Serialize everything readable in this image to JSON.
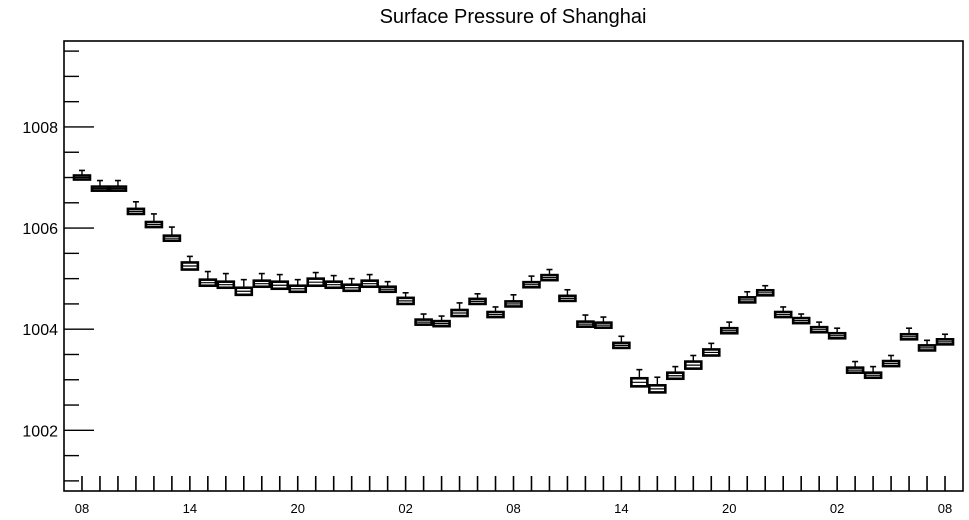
{
  "chart_data": {
    "type": "boxplot",
    "title": "Surface Pressure of Shanghai",
    "xlabel": "",
    "ylabel": "",
    "ylim": [
      1000.8,
      1009.7
    ],
    "grid": false,
    "legend": "none",
    "y_ticks": [
      1002,
      1004,
      1006,
      1008
    ],
    "y_tick_labels": [
      "1002",
      "1004",
      "1006",
      "1008"
    ],
    "x_ticks": [
      0,
      6,
      12,
      18,
      24,
      30,
      36,
      42,
      48
    ],
    "x_tick_labels": [
      "08",
      "14",
      "20",
      "02",
      "08",
      "14",
      "20",
      "02",
      "08"
    ],
    "x_range": [
      -1,
      49
    ],
    "box_color": "#000000",
    "boxes": [
      {
        "x": 0,
        "q1": 1006.96,
        "med": 1007.0,
        "q3": 1007.04,
        "lo": 1006.96,
        "hi": 1007.14
      },
      {
        "x": 1,
        "q1": 1006.74,
        "med": 1006.78,
        "q3": 1006.82,
        "lo": 1006.74,
        "hi": 1006.94
      },
      {
        "x": 2,
        "q1": 1006.74,
        "med": 1006.78,
        "q3": 1006.82,
        "lo": 1006.74,
        "hi": 1006.94
      },
      {
        "x": 3,
        "q1": 1006.28,
        "med": 1006.33,
        "q3": 1006.38,
        "lo": 1006.28,
        "hi": 1006.52
      },
      {
        "x": 4,
        "q1": 1006.02,
        "med": 1006.07,
        "q3": 1006.12,
        "lo": 1006.02,
        "hi": 1006.28
      },
      {
        "x": 5,
        "q1": 1005.75,
        "med": 1005.8,
        "q3": 1005.85,
        "lo": 1005.75,
        "hi": 1006.02
      },
      {
        "x": 6,
        "q1": 1005.18,
        "med": 1005.25,
        "q3": 1005.32,
        "lo": 1005.18,
        "hi": 1005.44
      },
      {
        "x": 7,
        "q1": 1004.86,
        "med": 1004.92,
        "q3": 1004.98,
        "lo": 1004.86,
        "hi": 1005.14
      },
      {
        "x": 8,
        "q1": 1004.82,
        "med": 1004.88,
        "q3": 1004.94,
        "lo": 1004.82,
        "hi": 1005.1
      },
      {
        "x": 9,
        "q1": 1004.68,
        "med": 1004.75,
        "q3": 1004.82,
        "lo": 1004.68,
        "hi": 1004.98
      },
      {
        "x": 10,
        "q1": 1004.84,
        "med": 1004.9,
        "q3": 1004.96,
        "lo": 1004.84,
        "hi": 1005.1
      },
      {
        "x": 11,
        "q1": 1004.8,
        "med": 1004.87,
        "q3": 1004.94,
        "lo": 1004.8,
        "hi": 1005.08
      },
      {
        "x": 12,
        "q1": 1004.74,
        "med": 1004.8,
        "q3": 1004.86,
        "lo": 1004.74,
        "hi": 1004.98
      },
      {
        "x": 13,
        "q1": 1004.86,
        "med": 1004.93,
        "q3": 1005.0,
        "lo": 1004.86,
        "hi": 1005.12
      },
      {
        "x": 14,
        "q1": 1004.82,
        "med": 1004.88,
        "q3": 1004.94,
        "lo": 1004.82,
        "hi": 1005.06
      },
      {
        "x": 15,
        "q1": 1004.76,
        "med": 1004.82,
        "q3": 1004.88,
        "lo": 1004.76,
        "hi": 1005.0
      },
      {
        "x": 16,
        "q1": 1004.84,
        "med": 1004.9,
        "q3": 1004.96,
        "lo": 1004.84,
        "hi": 1005.08
      },
      {
        "x": 17,
        "q1": 1004.74,
        "med": 1004.79,
        "q3": 1004.84,
        "lo": 1004.74,
        "hi": 1004.94
      },
      {
        "x": 18,
        "q1": 1004.5,
        "med": 1004.56,
        "q3": 1004.62,
        "lo": 1004.5,
        "hi": 1004.72
      },
      {
        "x": 19,
        "q1": 1004.09,
        "med": 1004.14,
        "q3": 1004.19,
        "lo": 1004.09,
        "hi": 1004.3
      },
      {
        "x": 20,
        "q1": 1004.06,
        "med": 1004.11,
        "q3": 1004.16,
        "lo": 1004.06,
        "hi": 1004.26
      },
      {
        "x": 21,
        "q1": 1004.26,
        "med": 1004.32,
        "q3": 1004.38,
        "lo": 1004.26,
        "hi": 1004.52
      },
      {
        "x": 22,
        "q1": 1004.5,
        "med": 1004.55,
        "q3": 1004.6,
        "lo": 1004.5,
        "hi": 1004.7
      },
      {
        "x": 23,
        "q1": 1004.24,
        "med": 1004.29,
        "q3": 1004.34,
        "lo": 1004.24,
        "hi": 1004.44
      },
      {
        "x": 24,
        "q1": 1004.45,
        "med": 1004.5,
        "q3": 1004.55,
        "lo": 1004.45,
        "hi": 1004.68
      },
      {
        "x": 25,
        "q1": 1004.83,
        "med": 1004.88,
        "q3": 1004.93,
        "lo": 1004.83,
        "hi": 1005.05
      },
      {
        "x": 26,
        "q1": 1004.97,
        "med": 1005.02,
        "q3": 1005.07,
        "lo": 1004.97,
        "hi": 1005.18
      },
      {
        "x": 27,
        "q1": 1004.56,
        "med": 1004.61,
        "q3": 1004.66,
        "lo": 1004.56,
        "hi": 1004.78
      },
      {
        "x": 28,
        "q1": 1004.05,
        "med": 1004.1,
        "q3": 1004.15,
        "lo": 1004.05,
        "hi": 1004.28
      },
      {
        "x": 29,
        "q1": 1004.03,
        "med": 1004.08,
        "q3": 1004.13,
        "lo": 1004.03,
        "hi": 1004.24
      },
      {
        "x": 30,
        "q1": 1003.63,
        "med": 1003.68,
        "q3": 1003.73,
        "lo": 1003.63,
        "hi": 1003.86
      },
      {
        "x": 31,
        "q1": 1002.87,
        "med": 1002.95,
        "q3": 1003.03,
        "lo": 1002.87,
        "hi": 1003.2
      },
      {
        "x": 32,
        "q1": 1002.75,
        "med": 1002.82,
        "q3": 1002.89,
        "lo": 1002.75,
        "hi": 1003.05
      },
      {
        "x": 33,
        "q1": 1003.02,
        "med": 1003.08,
        "q3": 1003.14,
        "lo": 1003.02,
        "hi": 1003.26
      },
      {
        "x": 34,
        "q1": 1003.22,
        "med": 1003.29,
        "q3": 1003.36,
        "lo": 1003.22,
        "hi": 1003.48
      },
      {
        "x": 35,
        "q1": 1003.48,
        "med": 1003.54,
        "q3": 1003.6,
        "lo": 1003.48,
        "hi": 1003.72
      },
      {
        "x": 36,
        "q1": 1003.92,
        "med": 1003.97,
        "q3": 1004.02,
        "lo": 1003.92,
        "hi": 1004.14
      },
      {
        "x": 37,
        "q1": 1004.53,
        "med": 1004.58,
        "q3": 1004.63,
        "lo": 1004.53,
        "hi": 1004.74
      },
      {
        "x": 38,
        "q1": 1004.67,
        "med": 1004.72,
        "q3": 1004.77,
        "lo": 1004.67,
        "hi": 1004.86
      },
      {
        "x": 39,
        "q1": 1004.24,
        "med": 1004.29,
        "q3": 1004.34,
        "lo": 1004.24,
        "hi": 1004.44
      },
      {
        "x": 40,
        "q1": 1004.12,
        "med": 1004.17,
        "q3": 1004.22,
        "lo": 1004.12,
        "hi": 1004.3
      },
      {
        "x": 41,
        "q1": 1003.94,
        "med": 1003.99,
        "q3": 1004.04,
        "lo": 1003.94,
        "hi": 1004.14
      },
      {
        "x": 42,
        "q1": 1003.82,
        "med": 1003.87,
        "q3": 1003.92,
        "lo": 1003.82,
        "hi": 1004.02
      },
      {
        "x": 43,
        "q1": 1003.14,
        "med": 1003.19,
        "q3": 1003.24,
        "lo": 1003.14,
        "hi": 1003.36
      },
      {
        "x": 44,
        "q1": 1003.04,
        "med": 1003.09,
        "q3": 1003.14,
        "lo": 1003.04,
        "hi": 1003.26
      },
      {
        "x": 45,
        "q1": 1003.27,
        "med": 1003.32,
        "q3": 1003.37,
        "lo": 1003.27,
        "hi": 1003.48
      },
      {
        "x": 46,
        "q1": 1003.8,
        "med": 1003.85,
        "q3": 1003.9,
        "lo": 1003.8,
        "hi": 1004.02
      },
      {
        "x": 47,
        "q1": 1003.58,
        "med": 1003.63,
        "q3": 1003.68,
        "lo": 1003.58,
        "hi": 1003.78
      },
      {
        "x": 48,
        "q1": 1003.7,
        "med": 1003.75,
        "q3": 1003.8,
        "lo": 1003.7,
        "hi": 1003.9
      }
    ]
  }
}
